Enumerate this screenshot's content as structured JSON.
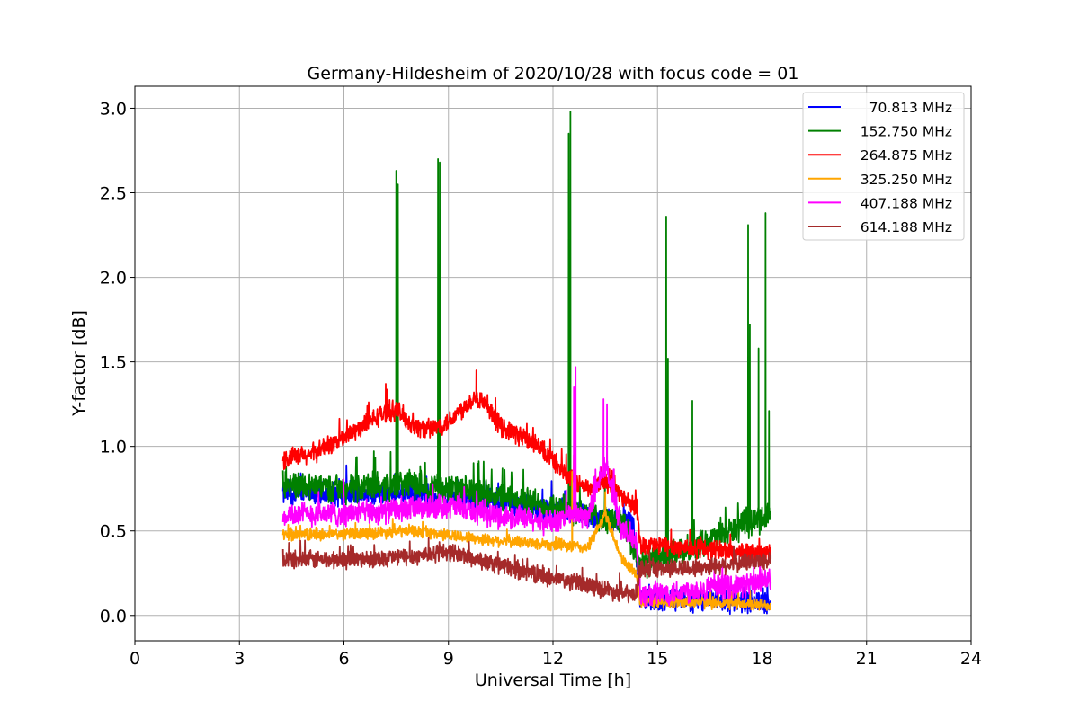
{
  "chart_data": {
    "type": "line",
    "title": "Germany-Hildesheim of 2020/10/28 with focus code = 01",
    "xlabel": "Universal Time [h]",
    "ylabel": "Y-factor [dB]",
    "xlim": [
      0,
      24
    ],
    "ylim": [
      -0.15,
      3.13
    ],
    "xticks": [
      0,
      3,
      6,
      9,
      12,
      15,
      18,
      21,
      24
    ],
    "xtick_labels": [
      "0",
      "3",
      "6",
      "9",
      "12",
      "15",
      "18",
      "21",
      "24"
    ],
    "yticks": [
      0.0,
      0.5,
      1.0,
      1.5,
      2.0,
      2.5,
      3.0
    ],
    "ytick_labels": [
      "0.0",
      "0.5",
      "1.0",
      "1.5",
      "2.0",
      "2.5",
      "3.0"
    ],
    "grid": true,
    "legend_position": "top-right",
    "x_range": [
      4.25,
      18.25
    ],
    "series": [
      {
        "name": "70.813 MHz",
        "color": "#0000ff",
        "noise": 0.06,
        "points": [
          [
            4.25,
            0.72
          ],
          [
            6.0,
            0.72
          ],
          [
            8.0,
            0.72
          ],
          [
            10.0,
            0.68
          ],
          [
            12.0,
            0.62
          ],
          [
            14.3,
            0.55
          ],
          [
            14.5,
            0.1
          ],
          [
            16.0,
            0.09
          ],
          [
            18.25,
            0.08
          ]
        ],
        "spikes": []
      },
      {
        "name": "152.750 MHz",
        "color": "#008000",
        "noise": 0.07,
        "points": [
          [
            4.25,
            0.78
          ],
          [
            6.0,
            0.75
          ],
          [
            8.0,
            0.78
          ],
          [
            10.0,
            0.72
          ],
          [
            12.0,
            0.65
          ],
          [
            14.0,
            0.55
          ],
          [
            14.5,
            0.3
          ],
          [
            16.0,
            0.4
          ],
          [
            18.25,
            0.6
          ]
        ],
        "spikes": [
          [
            7.5,
            2.63
          ],
          [
            7.55,
            2.55
          ],
          [
            8.7,
            2.7
          ],
          [
            8.75,
            2.68
          ],
          [
            12.45,
            2.85
          ],
          [
            12.5,
            2.98
          ],
          [
            15.25,
            2.36
          ],
          [
            15.3,
            1.52
          ],
          [
            16.0,
            1.27
          ],
          [
            17.6,
            2.31
          ],
          [
            17.65,
            1.72
          ],
          [
            17.9,
            1.58
          ],
          [
            18.1,
            2.38
          ],
          [
            18.2,
            1.21
          ]
        ]
      },
      {
        "name": "264.875 MHz",
        "color": "#ff0000",
        "noise": 0.05,
        "points": [
          [
            4.25,
            0.92
          ],
          [
            5.0,
            0.95
          ],
          [
            6.0,
            1.05
          ],
          [
            7.0,
            1.18
          ],
          [
            7.5,
            1.22
          ],
          [
            8.0,
            1.12
          ],
          [
            8.5,
            1.1
          ],
          [
            9.0,
            1.15
          ],
          [
            9.8,
            1.3
          ],
          [
            10.5,
            1.12
          ],
          [
            11.2,
            1.05
          ],
          [
            12.0,
            0.92
          ],
          [
            12.5,
            0.8
          ],
          [
            13.0,
            0.75
          ],
          [
            13.5,
            0.8
          ],
          [
            14.0,
            0.7
          ],
          [
            14.4,
            0.65
          ],
          [
            14.5,
            0.42
          ],
          [
            16.0,
            0.4
          ],
          [
            18.25,
            0.36
          ]
        ],
        "spikes": [
          [
            7.2,
            1.37
          ],
          [
            9.8,
            1.45
          ],
          [
            12.6,
            0.95
          ]
        ]
      },
      {
        "name": "325.250 MHz",
        "color": "#ffa500",
        "noise": 0.03,
        "points": [
          [
            4.25,
            0.48
          ],
          [
            6.0,
            0.48
          ],
          [
            8.0,
            0.5
          ],
          [
            10.0,
            0.45
          ],
          [
            12.0,
            0.42
          ],
          [
            13.0,
            0.4
          ],
          [
            13.5,
            0.6
          ],
          [
            14.0,
            0.32
          ],
          [
            14.4,
            0.25
          ],
          [
            14.5,
            0.08
          ],
          [
            16.0,
            0.08
          ],
          [
            18.25,
            0.06
          ]
        ],
        "spikes": [
          [
            12.55,
            0.85
          ],
          [
            13.5,
            0.73
          ]
        ]
      },
      {
        "name": "407.188 MHz",
        "color": "#ff00ff",
        "noise": 0.06,
        "points": [
          [
            4.25,
            0.6
          ],
          [
            6.0,
            0.6
          ],
          [
            8.0,
            0.63
          ],
          [
            9.0,
            0.65
          ],
          [
            10.0,
            0.6
          ],
          [
            12.0,
            0.55
          ],
          [
            12.5,
            0.6
          ],
          [
            13.0,
            0.58
          ],
          [
            13.5,
            0.9
          ],
          [
            14.0,
            0.5
          ],
          [
            14.4,
            0.45
          ],
          [
            14.5,
            0.12
          ],
          [
            16.0,
            0.15
          ],
          [
            18.25,
            0.2
          ]
        ],
        "spikes": [
          [
            12.65,
            1.47
          ],
          [
            12.6,
            1.35
          ],
          [
            13.45,
            1.28
          ],
          [
            13.55,
            1.25
          ]
        ]
      },
      {
        "name": "614.188 MHz",
        "color": "#a52a2a",
        "noise": 0.045,
        "points": [
          [
            4.25,
            0.33
          ],
          [
            6.0,
            0.33
          ],
          [
            8.0,
            0.35
          ],
          [
            9.0,
            0.38
          ],
          [
            10.0,
            0.32
          ],
          [
            12.0,
            0.22
          ],
          [
            13.0,
            0.18
          ],
          [
            14.0,
            0.13
          ],
          [
            14.4,
            0.12
          ],
          [
            14.5,
            0.28
          ],
          [
            16.0,
            0.28
          ],
          [
            18.25,
            0.33
          ]
        ],
        "spikes": []
      }
    ]
  }
}
